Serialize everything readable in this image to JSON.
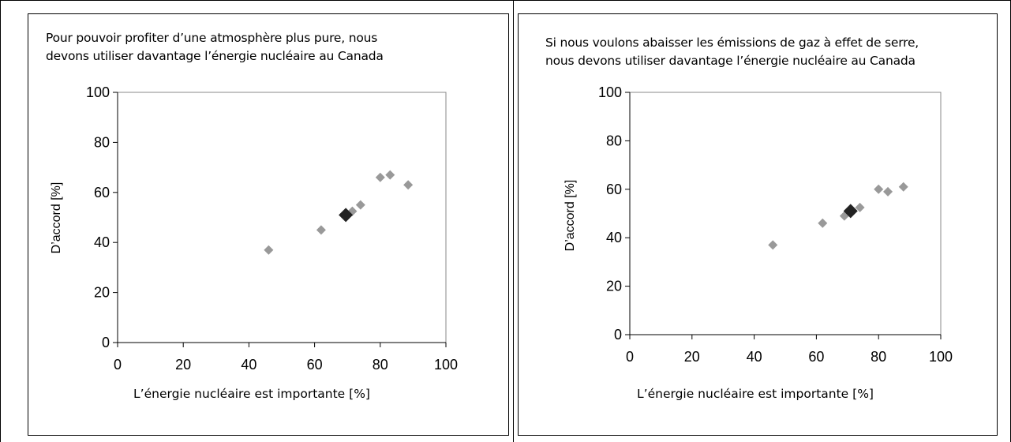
{
  "chart_data": [
    {
      "type": "scatter",
      "title": "Pour pouvoir profiter d’une atmosphère plus pure, nous\ndevons utiliser davantage l’énergie nucléaire au Canada",
      "xlabel": "L’énergie nucléaire est importante [%]",
      "ylabel": "D’accord [%]",
      "xlim": [
        0,
        100
      ],
      "ylim": [
        0,
        100
      ],
      "xticks": [
        0,
        20,
        40,
        60,
        80,
        100
      ],
      "yticks": [
        0,
        20,
        40,
        60,
        80,
        100
      ],
      "grid": false,
      "series": [
        {
          "color": "#999999",
          "points": [
            {
              "x": 46,
              "y": 37
            },
            {
              "x": 62,
              "y": 45
            },
            {
              "x": 71.5,
              "y": 52.5
            },
            {
              "x": 74,
              "y": 55
            },
            {
              "x": 80,
              "y": 66
            },
            {
              "x": 83,
              "y": 67
            },
            {
              "x": 88.5,
              "y": 63
            }
          ]
        },
        {
          "color": "#222222",
          "points": [
            {
              "x": 69.5,
              "y": 51
            }
          ]
        }
      ]
    },
    {
      "type": "scatter",
      "title": "Si nous voulons abaisser les émissions de gaz à effet de serre,\nnous devons utiliser davantage l’énergie nucléaire au Canada",
      "xlabel": "L’énergie nucléaire est importante [%]",
      "ylabel": "D’accord [%]",
      "xlim": [
        0,
        100
      ],
      "ylim": [
        0,
        100
      ],
      "xticks": [
        0,
        20,
        40,
        60,
        80,
        100
      ],
      "yticks": [
        0,
        20,
        40,
        60,
        80,
        100
      ],
      "grid": false,
      "series": [
        {
          "color": "#999999",
          "points": [
            {
              "x": 46,
              "y": 37
            },
            {
              "x": 62,
              "y": 46
            },
            {
              "x": 69,
              "y": 49
            },
            {
              "x": 74,
              "y": 52.5
            },
            {
              "x": 80,
              "y": 60
            },
            {
              "x": 83,
              "y": 59
            },
            {
              "x": 88,
              "y": 61
            }
          ]
        },
        {
          "color": "#222222",
          "points": [
            {
              "x": 71,
              "y": 51
            }
          ]
        }
      ]
    }
  ]
}
